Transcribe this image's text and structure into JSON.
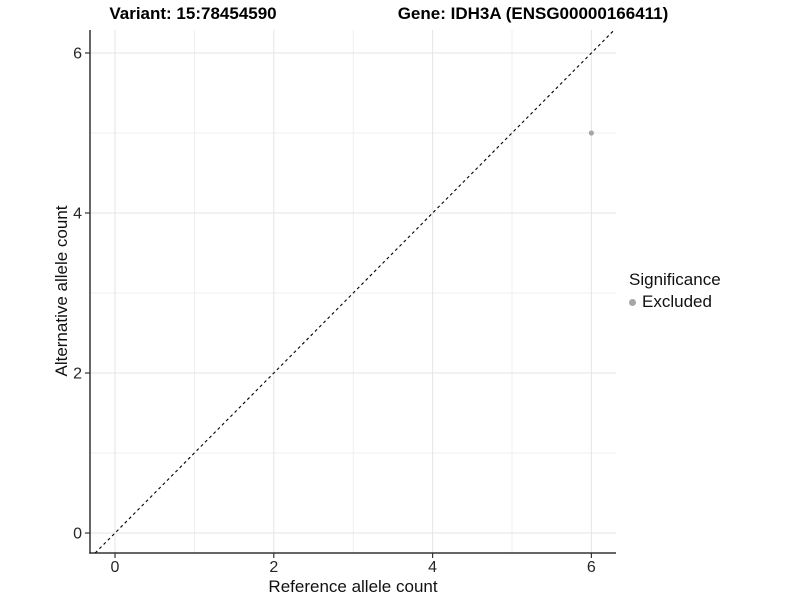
{
  "titles": {
    "variant": "Variant: 15:78454590",
    "gene": "Gene: IDH3A (ENSG00000166411)"
  },
  "legend": {
    "title": "Significance",
    "items": [
      {
        "label": "Excluded",
        "color": "#a6a6a6"
      }
    ]
  },
  "chart_data": {
    "type": "scatter",
    "title": "Variant: 15:78454590 | Gene: IDH3A (ENSG00000166411)",
    "xlabel": "Reference allele count",
    "ylabel": "Alternative allele count",
    "xlim": [
      -0.315,
      6.31
    ],
    "ylim": [
      -0.25,
      6.2875
    ],
    "x_ticks": [
      0,
      2,
      4,
      6
    ],
    "y_ticks": [
      0,
      2,
      4,
      6
    ],
    "x_minor_ticks": [
      1,
      3,
      5
    ],
    "y_minor_ticks": [
      1,
      3,
      5
    ],
    "grid": "on",
    "legend_title": "Significance",
    "legend_position": "right",
    "series": [
      {
        "name": "Excluded",
        "color": "#a6a6a6",
        "points": [
          {
            "x": 6,
            "y": 5
          }
        ]
      }
    ],
    "reference_line": {
      "kind": "identity",
      "equation": "y = x",
      "style": "dashed",
      "color": "#000000"
    },
    "colors": {
      "grid_major": "#e5e5e5",
      "grid_minor": "#efefef",
      "axis_line": "#333333",
      "tick_mark": "#333333",
      "tick_label": "#262626"
    }
  }
}
